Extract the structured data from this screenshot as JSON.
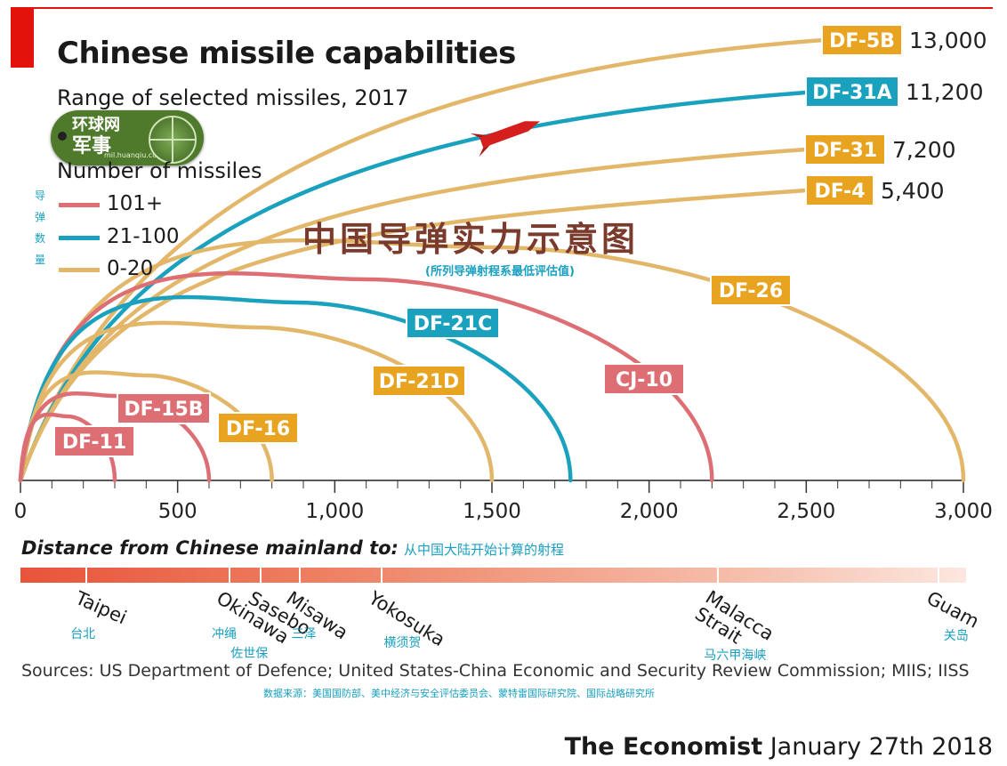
{
  "header": {
    "title": "Chinese missile capabilities",
    "subtitle": "Range of selected missiles, 2017"
  },
  "logo": {
    "line1": "环球网",
    "line2": "军事",
    "url": "mil.huanqiu.com"
  },
  "legend": {
    "title": "Number of missiles",
    "vertical_cn": "导弹数量",
    "items": [
      {
        "label": "101+",
        "color": "#dc6e74"
      },
      {
        "label": "21-100",
        "color": "#1aa1bd"
      },
      {
        "label": "0-20",
        "color": "#e3b76a"
      }
    ]
  },
  "watermark": {
    "main": "中国导弹实力示意图",
    "sub": "(所列导弹射程系最低评估值)"
  },
  "colors": {
    "count_101_plus": "#dc6e74",
    "count_21_100": "#1aa1bd",
    "count_0_20": "#e3b76a",
    "label_0_20": "#e8a320",
    "accent_red": "#e3120b",
    "cn_teal": "#19a0c0"
  },
  "chart_data": {
    "type": "line",
    "x_unit": "km",
    "xlim": [
      0,
      3000
    ],
    "x_ticks": [
      0,
      500,
      1000,
      1500,
      2000,
      2500,
      3000
    ],
    "x_tick_labels": [
      "0",
      "500",
      "1,000",
      "1,500",
      "2,000",
      "2,500",
      "3,000"
    ],
    "series": [
      {
        "name": "DF-11",
        "range_km": 300,
        "count": "101+"
      },
      {
        "name": "DF-15B",
        "range_km": 600,
        "count": "101+"
      },
      {
        "name": "DF-16",
        "range_km": 800,
        "count": "0-20"
      },
      {
        "name": "DF-21D",
        "range_km": 1500,
        "count": "0-20"
      },
      {
        "name": "DF-21C",
        "range_km": 1750,
        "count": "21-100"
      },
      {
        "name": "CJ-10",
        "range_km": 2200,
        "count": "101+"
      },
      {
        "name": "DF-26",
        "range_km": 3000,
        "count": "0-20"
      },
      {
        "name": "DF-4",
        "range_km": 5400,
        "range_label": "5,400",
        "count": "0-20"
      },
      {
        "name": "DF-31",
        "range_km": 7200,
        "range_label": "7,200",
        "count": "0-20"
      },
      {
        "name": "DF-31A",
        "range_km": 11200,
        "range_label": "11,200",
        "count": "21-100"
      },
      {
        "name": "DF-5B",
        "range_km": 13000,
        "range_label": "13,000",
        "count": "0-20"
      }
    ]
  },
  "distances": {
    "heading": "Distance from Chinese mainland to:",
    "heading_cn": "从中国大陆开始计算的射程",
    "places": [
      {
        "name": "Taipei",
        "cn": "台北",
        "km": 210
      },
      {
        "name": "Okinawa",
        "cn": "冲绳",
        "km": 665
      },
      {
        "name": "Sasebo",
        "cn": "佐世保",
        "km": 765
      },
      {
        "name": "Misawa",
        "cn": "三泽",
        "km": 890
      },
      {
        "name": "Yokosuka",
        "cn": "横须贺",
        "km": 1150
      },
      {
        "name": "Malacca Strait",
        "cn": "马六甲海峡",
        "km": 2220
      },
      {
        "name": "Guam",
        "cn": "关岛",
        "km": 2920
      }
    ]
  },
  "footer": {
    "sources": "Sources: US Department of Defence; United States-China Economic and Security Review Commission; MIIS; IISS",
    "sources_cn": "数据来源：美国国防部、美中经济与安全评估委员会、蒙特雷国际研究院、国际战略研究所",
    "brand": "The Economist",
    "date": "January 27th 2018"
  }
}
